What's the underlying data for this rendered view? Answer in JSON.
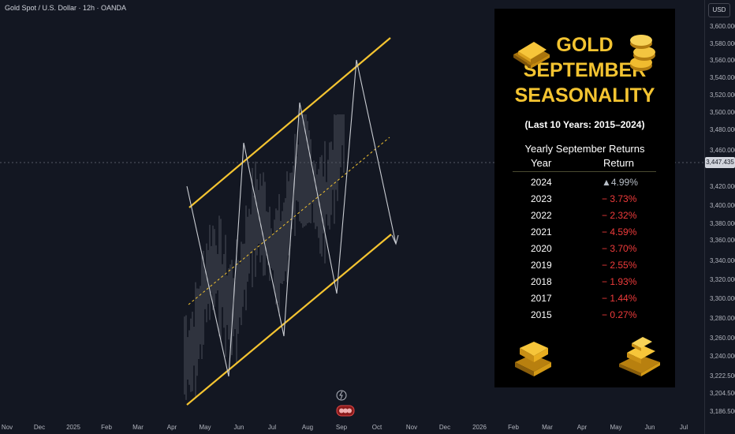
{
  "header": {
    "title": "Gold Spot / U.S. Dollar · 12h · OANDA"
  },
  "price_axis": {
    "currency": "USD",
    "current_price": "3,447.435",
    "ticks": [
      "3,600.000",
      "3,580.000",
      "3,560.000",
      "3,540.000",
      "3,520.000",
      "3,500.000",
      "3,480.000",
      "3,460.000",
      "3,420.000",
      "3,400.000",
      "3,380.000",
      "3,360.000",
      "3,340.000",
      "3,320.000",
      "3,300.000",
      "3,280.000",
      "3,260.000",
      "3,240.000",
      "3,222.500",
      "3,204.500",
      "3,186.500"
    ]
  },
  "time_axis": {
    "ticks": [
      "Nov",
      "Dec",
      "2025",
      "Feb",
      "Mar",
      "Apr",
      "May",
      "Jun",
      "Jul",
      "Aug",
      "Sep",
      "Oct",
      "Nov",
      "Dec",
      "2026",
      "Feb",
      "Mar",
      "Apr",
      "May",
      "Jun",
      "Jul"
    ]
  },
  "panel": {
    "title_line1": "GOLD",
    "title_line2": "SEPTEMBER",
    "title_line3": "SEASONALITY",
    "subtitle": "(Last 10 Years: 2015–2024)",
    "table_title": "Yearly September Returns",
    "col_year": "Year",
    "col_return": "Return",
    "rows": [
      {
        "year": "2024",
        "ret": "▲4.99%",
        "dir": "up"
      },
      {
        "year": "2023",
        "ret": "− 3.73%",
        "dir": "down"
      },
      {
        "year": "2022",
        "ret": "− 2.32%",
        "dir": "down"
      },
      {
        "year": "2021",
        "ret": "− 4.59%",
        "dir": "down"
      },
      {
        "year": "2020",
        "ret": "− 3.70%",
        "dir": "down"
      },
      {
        "year": "2019",
        "ret": "− 2.55%",
        "dir": "down"
      },
      {
        "year": "2018",
        "ret": "− 1.93%",
        "dir": "down"
      },
      {
        "year": "2017",
        "ret": "− 1.44%",
        "dir": "down"
      },
      {
        "year": "2015",
        "ret": "− 0.27%",
        "dir": "down"
      }
    ],
    "icons": [
      "gold-bar-icon",
      "gold-coins-icon",
      "gold-bars-stack-icon",
      "gold-bars-pile-icon"
    ]
  },
  "colors": {
    "background": "#131722",
    "channel": "#f4c431",
    "up": "#b8bfc8",
    "down": "#ef3b3b",
    "text": "#d1d4dc"
  }
}
